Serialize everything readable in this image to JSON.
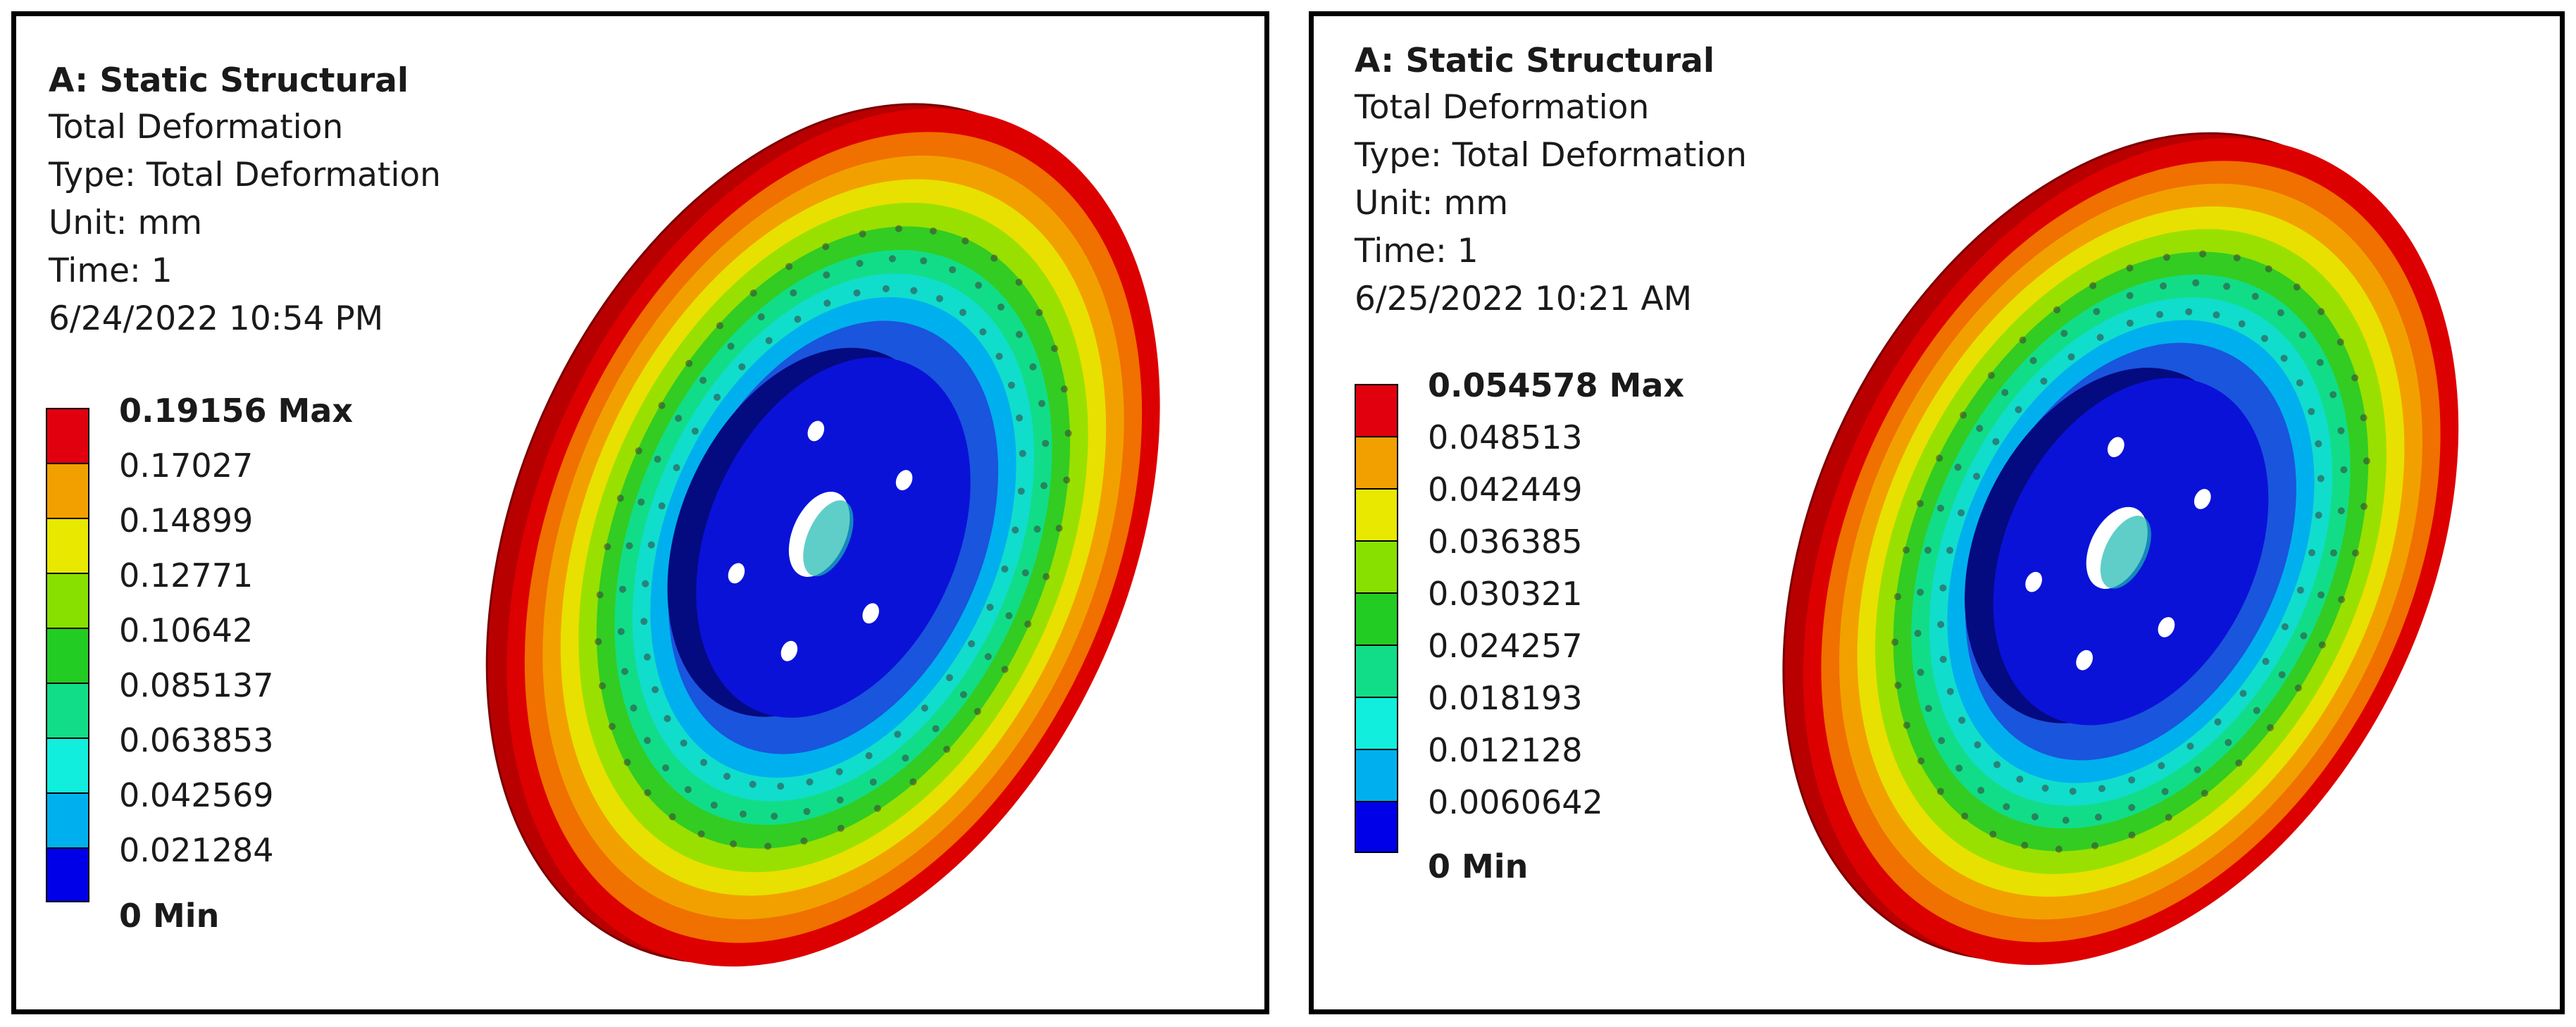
{
  "panels": [
    {
      "title": "A: Static Structural",
      "result": "Total Deformation",
      "type": "Type: Total Deformation",
      "unit": "Unit: mm",
      "time": "Time: 1",
      "timestamp": "6/24/2022 10:54 PM",
      "legend": [
        {
          "label": "0.19156 Max",
          "color": "#e0000e"
        },
        {
          "label": "0.17027",
          "color": "#f2a000"
        },
        {
          "label": "0.14899",
          "color": "#e8e800"
        },
        {
          "label": "0.12771",
          "color": "#88e000"
        },
        {
          "label": "0.10642",
          "color": "#22cc22"
        },
        {
          "label": "0.085137",
          "color": "#11dd88"
        },
        {
          "label": "0.063853",
          "color": "#11eedd"
        },
        {
          "label": "0.042569",
          "color": "#00b0ee"
        },
        {
          "label": "0.021284",
          "color": "#0000e8"
        },
        {
          "label": "0 Min",
          "color": ""
        }
      ]
    },
    {
      "title": "A: Static Structural",
      "result": "Total Deformation",
      "type": "Type: Total Deformation",
      "unit": "Unit: mm",
      "time": "Time: 1",
      "timestamp": "6/25/2022 10:21 AM",
      "legend": [
        {
          "label": "0.054578 Max",
          "color": "#e0000e"
        },
        {
          "label": "0.048513",
          "color": "#f2a000"
        },
        {
          "label": "0.042449",
          "color": "#e8e800"
        },
        {
          "label": "0.036385",
          "color": "#88e000"
        },
        {
          "label": "0.030321",
          "color": "#22cc22"
        },
        {
          "label": "0.024257",
          "color": "#11dd88"
        },
        {
          "label": "0.018193",
          "color": "#11eedd"
        },
        {
          "label": "0.012128",
          "color": "#00b0ee"
        },
        {
          "label": "0.0060642",
          "color": "#0000e8"
        },
        {
          "label": "0 Min",
          "color": ""
        }
      ]
    }
  ],
  "disc_ring_colors": [
    "#dd0000",
    "#f07000",
    "#f2a000",
    "#e8e000",
    "#99e000",
    "#33cc22",
    "#11dd88",
    "#11ddcc",
    "#00b0ee",
    "#1a55dd"
  ],
  "hub_color": "#0a10c8",
  "hub_face_color": "#0a12d8",
  "hub_side_color": "#040a80"
}
